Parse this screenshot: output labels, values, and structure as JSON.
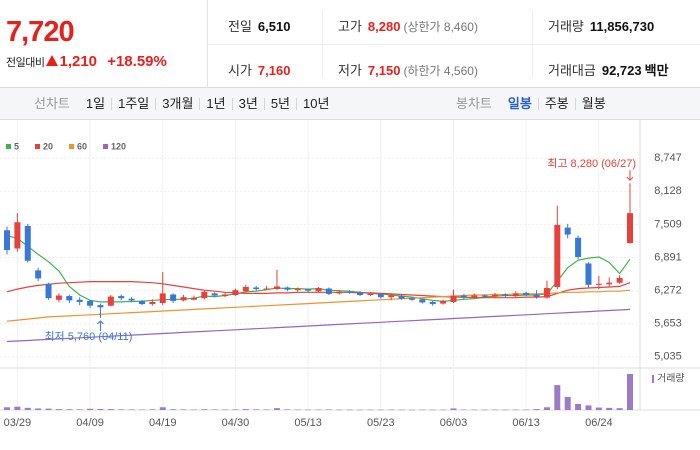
{
  "quote": {
    "price": "7,720",
    "change_label": "전일대비",
    "change": "1,210",
    "change_rate": "+18.59%"
  },
  "summary": [
    [
      {
        "label": "전일",
        "value": "6,510"
      },
      {
        "label": "고가",
        "value": "8,280",
        "note": "(상한가 8,460)"
      },
      {
        "label": "거래량",
        "value": "11,856,730"
      }
    ],
    [
      {
        "label": "시가",
        "value": "7,160"
      },
      {
        "label": "저가",
        "value": "7,150",
        "note": "(하한가 4,560)"
      },
      {
        "label": "거래대금",
        "value": "92,723",
        "unit": "백만"
      }
    ]
  ],
  "tabs": {
    "line_chart": {
      "label": "선차트",
      "options": [
        "1일",
        "1주일",
        "3개월",
        "1년",
        "3년",
        "5년",
        "10년"
      ]
    },
    "candle_chart": {
      "label": "봉차트",
      "options": [
        "일봉",
        "주봉",
        "월봉"
      ],
      "selected_index": 0
    }
  },
  "chart_data": {
    "type": "candlestick",
    "categories": [
      null,
      "03/29",
      null,
      null,
      null,
      null,
      null,
      null,
      "04/09",
      null,
      null,
      null,
      null,
      null,
      null,
      "04/19",
      null,
      null,
      null,
      null,
      null,
      null,
      "04/30",
      null,
      null,
      null,
      null,
      null,
      null,
      "05/13",
      null,
      null,
      null,
      null,
      null,
      null,
      "05/23",
      null,
      null,
      null,
      null,
      null,
      null,
      "06/03",
      null,
      null,
      null,
      null,
      null,
      null,
      "06/13",
      null,
      null,
      null,
      null,
      null,
      null,
      "06/24",
      null,
      null,
      null
    ],
    "open": [
      7400,
      7060,
      7480,
      6650,
      6400,
      6100,
      6170,
      6100,
      6080,
      6000,
      5990,
      6170,
      6120,
      6080,
      6020,
      6040,
      6200,
      6090,
      6100,
      6130,
      6220,
      6170,
      6190,
      6260,
      6330,
      6290,
      6300,
      6330,
      6280,
      6300,
      6260,
      6310,
      6220,
      6250,
      6240,
      6190,
      6210,
      6150,
      6170,
      6130,
      6110,
      6060,
      6030,
      6060,
      6180,
      6140,
      6180,
      6160,
      6200,
      6170,
      6230,
      6200,
      6140,
      6340,
      7450,
      7260,
      6780,
      6380,
      6390,
      6420,
      7160
    ],
    "high": [
      7470,
      7720,
      7520,
      6700,
      6420,
      6220,
      6200,
      6150,
      6100,
      6030,
      6190,
      6200,
      6150,
      6100,
      6110,
      6620,
      6220,
      6190,
      6180,
      6280,
      6240,
      6230,
      6310,
      6380,
      6360,
      6360,
      6660,
      6350,
      6330,
      6310,
      6340,
      6330,
      6280,
      6280,
      6260,
      6240,
      6220,
      6200,
      6190,
      6160,
      6120,
      6080,
      6100,
      6290,
      6210,
      6220,
      6200,
      6230,
      6220,
      6260,
      6250,
      6280,
      6460,
      7860,
      7520,
      7300,
      6800,
      6550,
      6520,
      6560,
      8280
    ],
    "low": [
      6950,
      7000,
      6800,
      6450,
      6100,
      6050,
      6040,
      6000,
      5950,
      5760,
      5980,
      6090,
      6050,
      6000,
      5990,
      6000,
      6040,
      6070,
      6090,
      6110,
      6150,
      6150,
      6170,
      6240,
      6270,
      6280,
      6290,
      6260,
      6250,
      6240,
      6240,
      6190,
      6200,
      6210,
      6170,
      6170,
      6120,
      6090,
      6100,
      6080,
      6030,
      5990,
      6010,
      6040,
      6110,
      6130,
      6130,
      6140,
      6140,
      6150,
      6170,
      6120,
      6120,
      6300,
      7250,
      6860,
      6330,
      6300,
      6340,
      6400,
      7150
    ],
    "close": [
      7030,
      7550,
      6830,
      6500,
      6130,
      6180,
      6090,
      6060,
      5990,
      5960,
      6160,
      6130,
      6090,
      6020,
      6060,
      6220,
      6080,
      6150,
      6140,
      6250,
      6180,
      6200,
      6280,
      6340,
      6300,
      6310,
      6350,
      6290,
      6300,
      6270,
      6320,
      6210,
      6250,
      6240,
      6190,
      6210,
      6150,
      6180,
      6120,
      6100,
      6050,
      6020,
      6080,
      6180,
      6140,
      6180,
      6160,
      6190,
      6170,
      6220,
      6190,
      6160,
      6320,
      7500,
      7320,
      6900,
      6380,
      6400,
      6420,
      6510,
      7720
    ],
    "up_color": "#e8403c",
    "down_color": "#3a78d8",
    "series": [
      {
        "name": "5",
        "color": "#3cb54a",
        "values": [
          7300,
          7250,
          7100,
          6950,
          6810,
          6640,
          6350,
          6190,
          6090,
          6060,
          6060,
          6060,
          6070,
          6070,
          6090,
          6100,
          6110,
          6110,
          6130,
          6170,
          6160,
          6180,
          6210,
          6250,
          6260,
          6290,
          6320,
          6310,
          6310,
          6300,
          6310,
          6280,
          6270,
          6260,
          6240,
          6220,
          6210,
          6190,
          6170,
          6150,
          6120,
          6090,
          6070,
          6090,
          6110,
          6120,
          6150,
          6170,
          6180,
          6180,
          6190,
          6190,
          6210,
          6450,
          6700,
          6840,
          6880,
          6900,
          6800,
          6590,
          6860
        ]
      },
      {
        "name": "20",
        "color": "#e8403c",
        "values": [
          6250,
          6300,
          6340,
          6370,
          6390,
          6410,
          6420,
          6430,
          6440,
          6440,
          6440,
          6440,
          6440,
          6430,
          6420,
          6400,
          6370,
          6340,
          6310,
          6280,
          6260,
          6240,
          6230,
          6220,
          6220,
          6220,
          6230,
          6230,
          6240,
          6240,
          6240,
          6240,
          6240,
          6240,
          6230,
          6230,
          6220,
          6210,
          6200,
          6190,
          6180,
          6170,
          6160,
          6150,
          6150,
          6140,
          6140,
          6140,
          6140,
          6140,
          6150,
          6150,
          6160,
          6220,
          6280,
          6310,
          6320,
          6330,
          6340,
          6350,
          6420
        ]
      },
      {
        "name": "60",
        "color": "#f0932b",
        "values": [
          5700,
          5720,
          5740,
          5760,
          5780,
          5790,
          5800,
          5810,
          5820,
          5830,
          5840,
          5850,
          5860,
          5870,
          5880,
          5890,
          5900,
          5910,
          5920,
          5930,
          5940,
          5950,
          5960,
          5970,
          5980,
          5990,
          6000,
          6010,
          6020,
          6030,
          6040,
          6050,
          6060,
          6070,
          6080,
          6090,
          6100,
          6110,
          6120,
          6130,
          6140,
          6150,
          6160,
          6170,
          6180,
          6190,
          6190,
          6200,
          6200,
          6210,
          6210,
          6210,
          6220,
          6230,
          6240,
          6240,
          6250,
          6250,
          6260,
          6260,
          6280
        ]
      },
      {
        "name": "120",
        "color": "#9467bd",
        "values": [
          5320,
          5330,
          5340,
          5350,
          5360,
          5370,
          5380,
          5390,
          5400,
          5410,
          5420,
          5430,
          5440,
          5450,
          5460,
          5470,
          5480,
          5490,
          5500,
          5510,
          5520,
          5530,
          5540,
          5550,
          5560,
          5570,
          5580,
          5590,
          5600,
          5610,
          5620,
          5630,
          5640,
          5650,
          5660,
          5670,
          5680,
          5690,
          5700,
          5710,
          5720,
          5730,
          5740,
          5750,
          5760,
          5770,
          5780,
          5790,
          5800,
          5810,
          5820,
          5830,
          5840,
          5850,
          5860,
          5870,
          5880,
          5890,
          5900,
          5910,
          5920
        ]
      }
    ],
    "ylim": [
      4900,
      9050
    ],
    "yticks": [
      {
        "value": 8747,
        "label": "8,747"
      },
      {
        "value": 8128,
        "label": "8,128"
      },
      {
        "value": 7509,
        "label": "7,509"
      },
      {
        "value": 6891,
        "label": "6,891"
      },
      {
        "value": 6272,
        "label": "6,272"
      },
      {
        "value": 5653,
        "label": "5,653"
      },
      {
        "value": 5035,
        "label": "5,035"
      }
    ],
    "grid": true,
    "annotations": [
      {
        "text": "최고 8,280 (06/27)",
        "anchor": "high",
        "color": "#e8403c"
      },
      {
        "text": "최저 5,760 (04/11)",
        "anchor": "low",
        "color": "#3a78d8"
      }
    ],
    "volume": {
      "name": "거래량",
      "color": "#9b7bc4",
      "ylim": [
        0,
        12500000
      ],
      "values": [
        900000,
        1100000,
        700000,
        500000,
        450000,
        300000,
        250000,
        200000,
        400000,
        350000,
        300000,
        200000,
        180000,
        150000,
        200000,
        900000,
        250000,
        180000,
        150000,
        250000,
        180000,
        150000,
        200000,
        300000,
        200000,
        150000,
        600000,
        200000,
        150000,
        120000,
        150000,
        180000,
        120000,
        110000,
        100000,
        120000,
        100000,
        150000,
        100000,
        90000,
        110000,
        100000,
        120000,
        500000,
        150000,
        120000,
        100000,
        120000,
        100000,
        140000,
        120000,
        300000,
        900000,
        8200000,
        4300000,
        2000000,
        1500000,
        800000,
        700000,
        600000,
        11856730
      ]
    }
  }
}
